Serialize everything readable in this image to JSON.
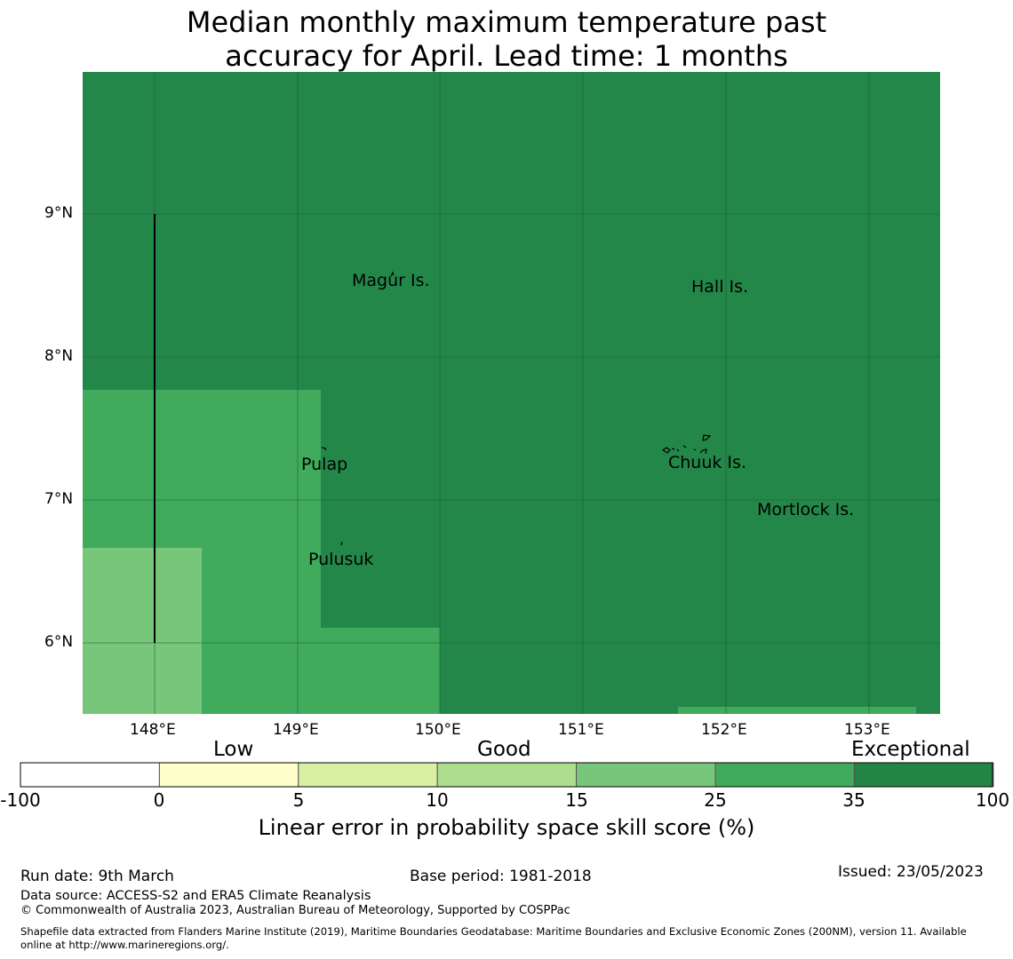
{
  "title": {
    "line1": "Median monthly maximum temperature past",
    "line2": "accuracy for April. Lead time: 1 months"
  },
  "map": {
    "lat_ticks": [
      "9°N",
      "8°N",
      "7°N",
      "6°N"
    ],
    "lon_ticks": [
      "148°E",
      "149°E",
      "150°E",
      "151°E",
      "152°E",
      "153°E"
    ],
    "places": [
      {
        "name": "Magur Is."
      },
      {
        "name": "Hall Is."
      },
      {
        "name": "Pulap"
      },
      {
        "name": "Chuuk Is."
      },
      {
        "name": "Mortlock Is."
      },
      {
        "name": "Pulusuk"
      }
    ],
    "colors": {
      "exceptional": "#24874a",
      "good_high": "#41ab5d",
      "good_mid": "#78c679"
    }
  },
  "colorbar": {
    "categories": [
      "Low",
      "Good",
      "Exceptional"
    ],
    "ticks": [
      "-100",
      "0",
      "5",
      "10",
      "15",
      "25",
      "35",
      "100"
    ],
    "colors": [
      "#ffffff",
      "#ffffcc",
      "#d9f0a3",
      "#addd8e",
      "#78c679",
      "#41ab5d",
      "#238443"
    ],
    "label": "Linear error in probability space skill score (%)"
  },
  "footer": {
    "run_date": "Run date: 9th March",
    "base_period": "Base period: 1981-2018",
    "issued": "Issued: 23/05/2023",
    "data_source": "Data source: ACCESS-S2 and ERA5 Climate Reanalysis",
    "copyright": "© Commonwealth of Australia 2023, Australian Bureau of Meteorology, Supported by COSPPac",
    "shapefile_line1": "Shapefile data extracted from Flanders Marine Institute (2019), Maritime Boundaries Geodatabase: Maritime Boundaries and Exclusive Economic Zones (200NM), version 11. Available",
    "shapefile_line2": "online at http://www.marineregions.org/."
  }
}
